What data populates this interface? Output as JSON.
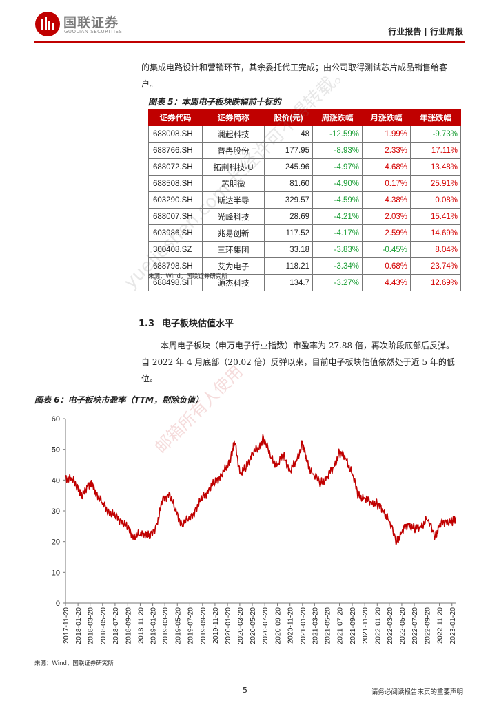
{
  "header": {
    "logo_cn": "国联证券",
    "logo_en": "GUOLIAN SECURITIES",
    "report_type": "行业报告 | 行业周报",
    "brand_color": "#c00000"
  },
  "intro_paragraph": {
    "line1": "的集成电路设计和营销环节，其余委托代工完成；由公司取得测试芯片成品销售给客",
    "line2": "户。"
  },
  "table5": {
    "title": "图表 5：本周电子板块跌幅前十标的",
    "headers": [
      "证券代码",
      "证券简称",
      "股价(元)",
      "周涨跌幅",
      "月涨跌幅",
      "年涨跌幅"
    ],
    "rows": [
      {
        "code": "688008.SH",
        "name": "澜起科技",
        "price": "48",
        "week": "-12.59%",
        "month": "1.99%",
        "year": "-9.73%"
      },
      {
        "code": "688766.SH",
        "name": "普冉股份",
        "price": "177.95",
        "week": "-8.93%",
        "month": "2.33%",
        "year": "17.11%"
      },
      {
        "code": "688072.SH",
        "name": "拓荆科技-U",
        "price": "245.96",
        "week": "-4.97%",
        "month": "4.68%",
        "year": "13.48%"
      },
      {
        "code": "688508.SH",
        "name": "芯朋微",
        "price": "81.60",
        "week": "-4.90%",
        "month": "0.17%",
        "year": "25.91%"
      },
      {
        "code": "603290.SH",
        "name": "斯达半导",
        "price": "329.57",
        "week": "-4.59%",
        "month": "4.38%",
        "year": "0.08%"
      },
      {
        "code": "688007.SH",
        "name": "光峰科技",
        "price": "28.69",
        "week": "-4.21%",
        "month": "2.03%",
        "year": "15.41%"
      },
      {
        "code": "603986.SH",
        "name": "兆易创新",
        "price": "117.52",
        "week": "-4.17%",
        "month": "2.59%",
        "year": "14.69%"
      },
      {
        "code": "300408.SZ",
        "name": "三环集团",
        "price": "33.18",
        "week": "-3.83%",
        "month": "-0.45%",
        "year": "8.04%"
      },
      {
        "code": "688798.SH",
        "name": "艾为电子",
        "price": "118.21",
        "week": "-3.34%",
        "month": "0.68%",
        "year": "23.74%"
      },
      {
        "code": "688498.SH",
        "name": "源杰科技",
        "price": "134.7",
        "week": "-3.27%",
        "month": "4.43%",
        "year": "12.69%"
      }
    ],
    "source": "来源：Wind，国联证券研究所",
    "negative_color": "#1b9e35",
    "positive_color": "#d40000"
  },
  "section": {
    "number": "1.3",
    "title": "电子板块估值水平",
    "paragraph_line1": "本周电子板块（申万电子行业指数）市盈率为 27.88 倍，再次阶段底部后反弹。",
    "paragraph_line2": "自 2022 年 4 月底部（20.02 倍）反弹以来，目前电子板块估值依然处于近 5 年的低",
    "paragraph_line3": "位。"
  },
  "chart6": {
    "title": "图表 6：电子板块市盈率（TTM，剔除负值）",
    "source": "来源：Wind，国联证券研究所"
  },
  "chart_data": {
    "type": "line",
    "title": "图表 6：电子板块市盈率（TTM，剔除负值）",
    "xlabel": "",
    "ylabel": "",
    "ylim": [
      0,
      60
    ],
    "yticks": [
      0,
      10,
      20,
      30,
      40,
      50,
      60
    ],
    "xlim": [
      "2017-11-20",
      "2023-02-10"
    ],
    "xticks": [
      "2017-11-20",
      "2018-01-20",
      "2018-03-20",
      "2018-05-20",
      "2018-07-20",
      "2018-09-20",
      "2018-11-20",
      "2019-01-20",
      "2019-03-20",
      "2019-05-20",
      "2019-07-20",
      "2019-09-20",
      "2019-11-20",
      "2020-01-20",
      "2020-03-20",
      "2020-05-20",
      "2020-07-20",
      "2020-09-20",
      "2020-11-20",
      "2021-01-20",
      "2021-03-20",
      "2021-05-20",
      "2021-07-20",
      "2021-09-20",
      "2021-11-20",
      "2022-01-20",
      "2022-03-20",
      "2022-05-20",
      "2022-07-20",
      "2022-09-20",
      "2022-11-20",
      "2023-01-20"
    ],
    "grid": false,
    "line_color": "#c00000",
    "series": [
      {
        "x": [
          "2017-11-20",
          "2017-12-20",
          "2018-01-20",
          "2018-02-08",
          "2018-03-10",
          "2018-03-30",
          "2018-04-20",
          "2018-05-20",
          "2018-06-20",
          "2018-07-20",
          "2018-08-20",
          "2018-09-20",
          "2018-10-19",
          "2018-11-20",
          "2018-12-20",
          "2019-01-04",
          "2019-02-10",
          "2019-03-08",
          "2019-04-10",
          "2019-05-10",
          "2019-06-10",
          "2019-07-20",
          "2019-08-20",
          "2019-09-20",
          "2019-10-20",
          "2019-11-20",
          "2019-12-20",
          "2020-01-20",
          "2020-02-10",
          "2020-02-25",
          "2020-03-23",
          "2020-04-20",
          "2020-05-20",
          "2020-06-20",
          "2020-07-13",
          "2020-08-20",
          "2020-09-20",
          "2020-10-20",
          "2020-11-20",
          "2020-12-20",
          "2021-01-20",
          "2021-02-10",
          "2021-03-10",
          "2021-04-20",
          "2021-05-20",
          "2021-06-20",
          "2021-07-20",
          "2021-08-20",
          "2021-09-20",
          "2021-10-20",
          "2021-11-20",
          "2021-12-20",
          "2022-01-20",
          "2022-02-20",
          "2022-03-15",
          "2022-04-26",
          "2022-05-20",
          "2022-06-20",
          "2022-07-20",
          "2022-08-20",
          "2022-09-20",
          "2022-10-31",
          "2022-11-20",
          "2022-12-20",
          "2023-01-20",
          "2023-02-10"
        ],
        "y": [
          41,
          40,
          38,
          34,
          39,
          38,
          36,
          32,
          30,
          28,
          27,
          24,
          22,
          22,
          23,
          21,
          26,
          33,
          36,
          30,
          26,
          27,
          31,
          34,
          37,
          39,
          42,
          44,
          49,
          52,
          42,
          44,
          49,
          50,
          54,
          47,
          45,
          48,
          43,
          46,
          52,
          46,
          42,
          39,
          41,
          44,
          49,
          47,
          42,
          35,
          34,
          33,
          32,
          30,
          27,
          20.02,
          23,
          26,
          24,
          25,
          27,
          22,
          25,
          27,
          26,
          27.88
        ]
      }
    ]
  },
  "footer": {
    "page_number": "5",
    "note": "请务必阅读报告末页的重要声明"
  },
  "watermark": {
    "line1": "yuejieshen.com 长经许可不得转载。",
    "line2": "邮箱所有人使用"
  }
}
